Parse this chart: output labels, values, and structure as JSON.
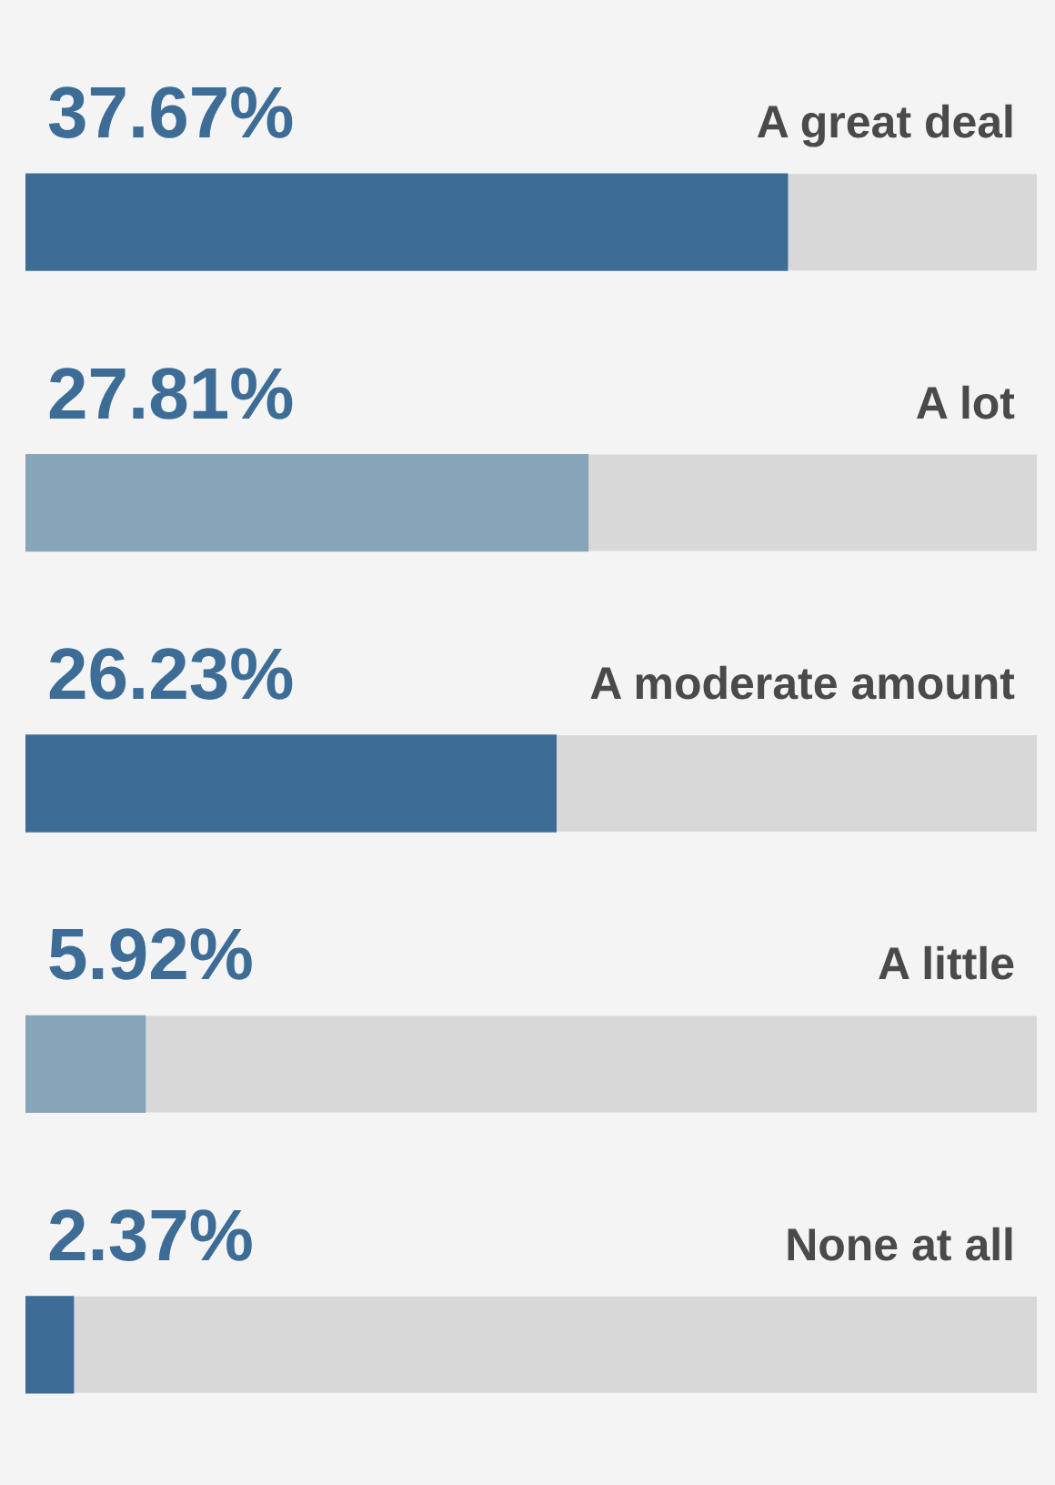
{
  "chart_data": {
    "type": "bar",
    "orientation": "horizontal",
    "categories": [
      "A great deal",
      "A lot",
      "A moderate amount",
      "A little",
      "None at all"
    ],
    "values": [
      37.67,
      27.81,
      26.23,
      5.92,
      2.37
    ],
    "value_labels": [
      "37.67%",
      "27.81%",
      "26.23%",
      "5.92%",
      "2.37%"
    ],
    "colors": [
      "#3d6d96",
      "#87a5b8",
      "#3d6d96",
      "#87a5b8",
      "#3d6d96"
    ],
    "xlim": [
      0,
      50
    ],
    "tick_labels": false,
    "legend": false
  }
}
